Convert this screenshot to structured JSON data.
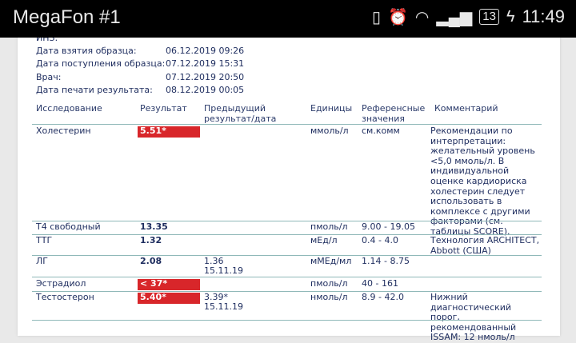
{
  "status_bar": {
    "carrier": "MegaFon #1",
    "battery": "13",
    "time": "11:49",
    "icons": [
      "vibrate-icon",
      "alarm-icon",
      "wifi-icon",
      "signal-icon",
      "battery-icon",
      "charging-icon"
    ]
  },
  "info": [
    {
      "label": "ИНЗ:",
      "value": ""
    },
    {
      "label": "Дата взятия образца:",
      "value": "06.12.2019 09:26"
    },
    {
      "label": "Дата поступления образца:",
      "value": "07.12.2019 15:31"
    },
    {
      "label": "Врач:",
      "value": "07.12.2019 20:50"
    },
    {
      "label": "Дата печати результата:",
      "value": "08.12.2019 00:05"
    }
  ],
  "table": {
    "headers": [
      "Исследование",
      "Результат",
      "Предыдущий результат/дата",
      "Единицы",
      "Референсные значения",
      "Комментарий"
    ],
    "rows": [
      {
        "test": "Холестерин",
        "result": "5.51*",
        "flag": true,
        "prev": "",
        "prev_date": "",
        "units": "ммоль/л",
        "ref": "см.комм",
        "comment": "Рекомендации по интерпретации: желательный уровень <5,0 ммоль/л. В индивидуальной оценке кардиориска холестерин следует использовать в комплексе с другими факторами (см. таблицы SCORE)."
      },
      {
        "test": "Т4 свободный",
        "result": "13.35",
        "flag": false,
        "prev": "",
        "prev_date": "",
        "units": "пмоль/л",
        "ref": "9.00 - 19.05",
        "comment": ""
      },
      {
        "test": "ТТГ",
        "result": "1.32",
        "flag": false,
        "prev": "",
        "prev_date": "",
        "units": "мЕд/л",
        "ref": "0.4 - 4.0",
        "comment": "Технология ARCHITECT, Abbott (США)"
      },
      {
        "test": "ЛГ",
        "result": "2.08",
        "flag": false,
        "prev": "1.36",
        "prev_date": "15.11.19",
        "units": "мМЕд/мл",
        "ref": "1.14 - 8.75",
        "comment": ""
      },
      {
        "test": "Эстрадиол",
        "result": "< 37*",
        "flag": true,
        "prev": "",
        "prev_date": "",
        "units": "пмоль/л",
        "ref": "40 - 161",
        "comment": ""
      },
      {
        "test": "Тестостерон",
        "result": "5.40*",
        "flag": true,
        "prev": "3.39*",
        "prev_date": "15.11.19",
        "units": "нмоль/л",
        "ref": "8.9 - 42.0",
        "comment": "Нижний диагностический порог, рекомендованный ISSAM: 12 нмоль/л"
      }
    ]
  },
  "colors": {
    "flag": "#d8262a",
    "text": "#1d2c5e",
    "divider": "#8fb8b8"
  }
}
